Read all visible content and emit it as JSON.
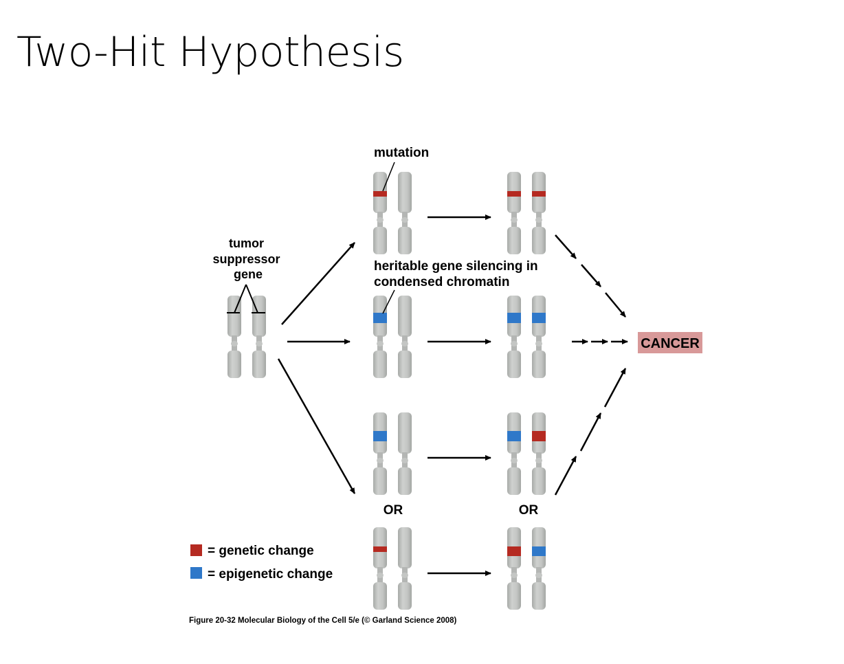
{
  "slide": {
    "title": "Two-Hit Hypothesis"
  },
  "labels": {
    "tumor_suppressor_gene": [
      "tumor",
      "suppressor",
      "gene"
    ],
    "mutation": "mutation",
    "silencing": [
      "heritable gene silencing in",
      "condensed chromatin"
    ],
    "or_left": "OR",
    "or_right": "OR",
    "cancer": "CANCER"
  },
  "legend": {
    "genetic": "= genetic change",
    "epigenetic": "= epigenetic change"
  },
  "caption": "Figure 20-32  Molecular Biology of the Cell 5/e (© Garland Science 2008)",
  "colors": {
    "genetic": "#b52a21",
    "epigenetic": "#2f78c9",
    "chromosome": "#c4c6c4",
    "cancer_box": "#d89999"
  }
}
